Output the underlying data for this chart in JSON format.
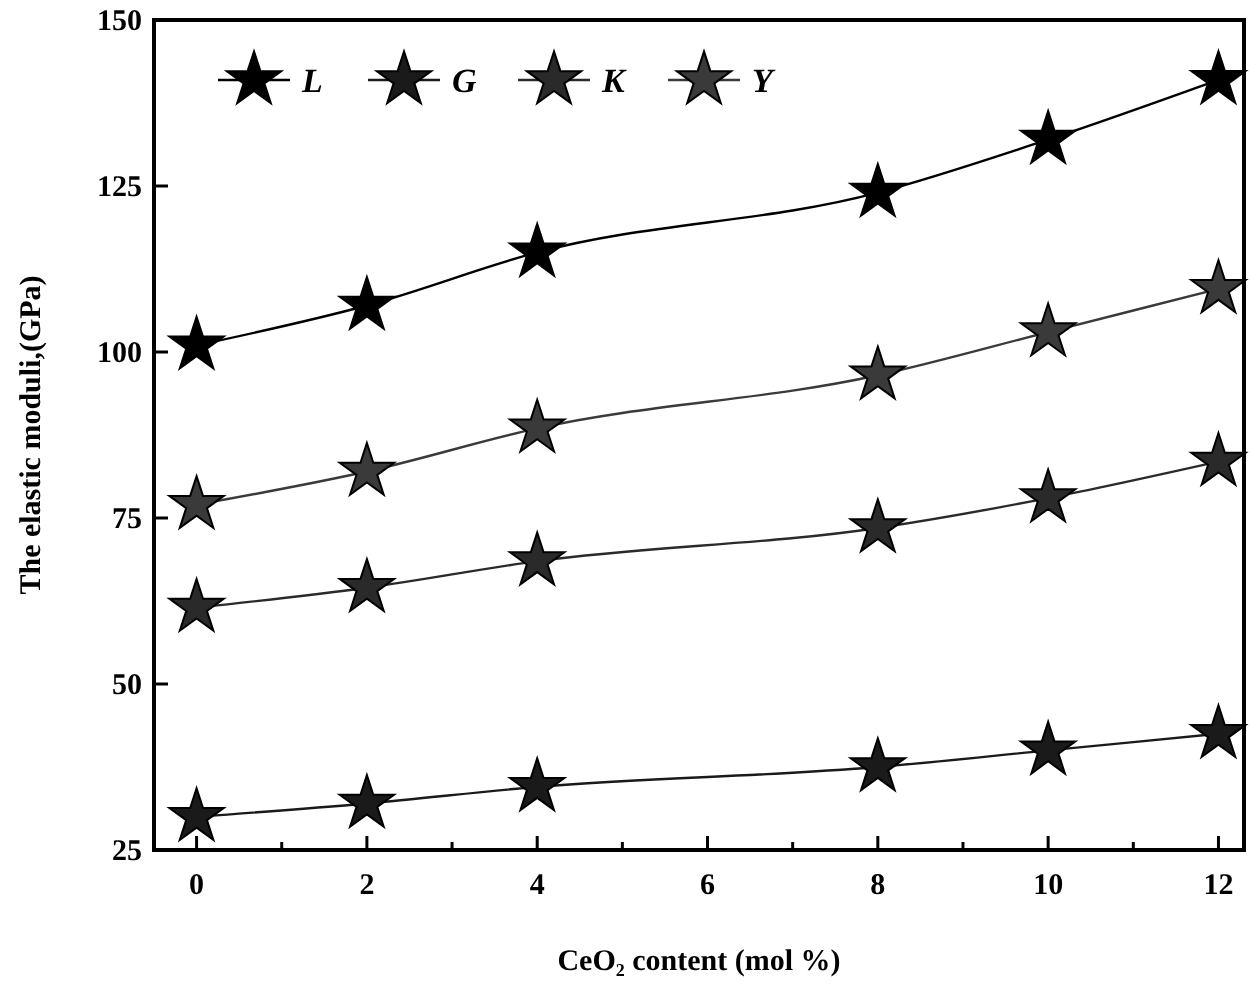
{
  "chart_data": {
    "type": "line",
    "xlabel": "CeO₂ content (mol %)",
    "ylabel": "The elastic moduli,(GPa)",
    "x": [
      0,
      2,
      4,
      8,
      10,
      12
    ],
    "xlim": [
      -0.5,
      12.3
    ],
    "ylim": [
      25,
      150
    ],
    "xticks": [
      0,
      {
        "value": 1,
        "label": null
      },
      2,
      {
        "value": 3,
        "label": null
      },
      4,
      {
        "value": 5,
        "label": null
      },
      6,
      {
        "value": 7,
        "label": null
      },
      8,
      {
        "value": 9,
        "label": null
      },
      10,
      {
        "value": 11,
        "label": null
      },
      12
    ],
    "yticks": [
      25,
      50,
      75,
      100,
      125,
      150
    ],
    "marker": "star",
    "legend": "top left",
    "grid": false,
    "series": [
      {
        "name": "L",
        "color": "#000000",
        "values": [
          101,
          107,
          115,
          124,
          132,
          141
        ]
      },
      {
        "name": "G",
        "color": "#1a1a1a",
        "values": [
          30,
          32,
          34.5,
          37.5,
          40,
          42.5
        ]
      },
      {
        "name": "K",
        "color": "#2a2a2a",
        "values": [
          61.5,
          64.5,
          68.5,
          73.5,
          78,
          83.5
        ]
      },
      {
        "name": "Y",
        "color": "#3a3a3a",
        "values": [
          77,
          82,
          88.5,
          96.5,
          103,
          109.5
        ]
      }
    ]
  }
}
